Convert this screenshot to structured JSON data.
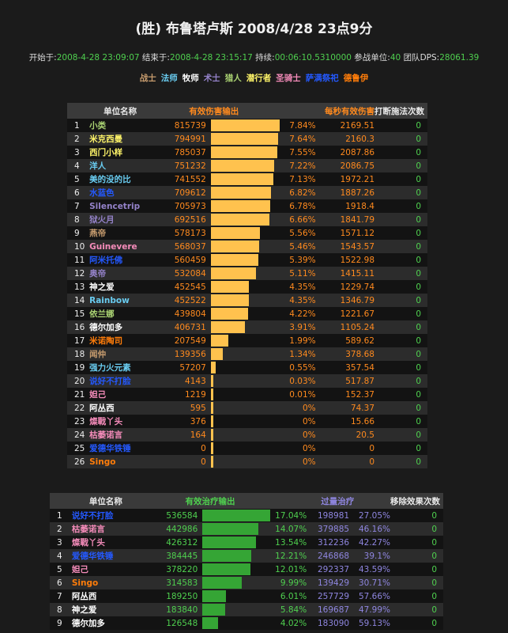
{
  "title": "(胜) 布鲁塔卢斯 2008/4/28 23点9分",
  "meta": {
    "start_label": "开始于:",
    "start": "2008-4-28 23:09:07",
    "end_label": " 结束于:",
    "end": "2008-4-28 23:15:17",
    "dur_label": " 持续:",
    "dur": "00:06:10.5310000",
    "units_label": " 参战单位:",
    "units": "40",
    "dps_label": " 团队DPS:",
    "dps": "28061.39"
  },
  "colors": {
    "warrior": "#c79c6e",
    "mage": "#69ccf0",
    "priest": "#ffffff",
    "warlock": "#9482c9",
    "hunter": "#abd473",
    "rogue": "#fff569",
    "paladin": "#f58cba",
    "shaman": "#2459ff",
    "druid": "#ff7d0a"
  },
  "legend": [
    {
      "label": "战士",
      "cls": "warrior"
    },
    {
      "label": "法师",
      "cls": "mage"
    },
    {
      "label": "牧师",
      "cls": "priest"
    },
    {
      "label": "术士",
      "cls": "warlock"
    },
    {
      "label": "猎人",
      "cls": "hunter"
    },
    {
      "label": "潜行者",
      "cls": "rogue"
    },
    {
      "label": "圣骑士",
      "cls": "paladin"
    },
    {
      "label": "萨满祭祀",
      "cls": "shaman"
    },
    {
      "label": "德鲁伊",
      "cls": "druid"
    }
  ],
  "damage": {
    "headers": {
      "name": "单位名称",
      "dmg": "有效伤害输出",
      "dps": "每秒有效伤害",
      "interrupts": "打断施法次数"
    },
    "rows": [
      {
        "n": "1",
        "name": "小类",
        "cls": "hunter",
        "val": "815739",
        "pct": "7.84%",
        "dps": "2169.51",
        "int": "0"
      },
      {
        "n": "2",
        "name": "米克西曼",
        "cls": "rogue",
        "val": "794991",
        "pct": "7.64%",
        "dps": "2160.3",
        "int": "0"
      },
      {
        "n": "3",
        "name": "西门小样",
        "cls": "rogue",
        "val": "785037",
        "pct": "7.55%",
        "dps": "2087.86",
        "int": "0"
      },
      {
        "n": "4",
        "name": "洋人",
        "cls": "mage",
        "val": "751232",
        "pct": "7.22%",
        "dps": "2086.75",
        "int": "0"
      },
      {
        "n": "5",
        "name": "美的没的比",
        "cls": "mage",
        "val": "741552",
        "pct": "7.13%",
        "dps": "1972.21",
        "int": "0"
      },
      {
        "n": "6",
        "name": "水蓝色",
        "cls": "shaman",
        "val": "709612",
        "pct": "6.82%",
        "dps": "1887.26",
        "int": "0"
      },
      {
        "n": "7",
        "name": "Silencetrip",
        "cls": "warlock",
        "val": "705973",
        "pct": "6.78%",
        "dps": "1918.4",
        "int": "0"
      },
      {
        "n": "8",
        "name": "狱火月",
        "cls": "warlock",
        "val": "692516",
        "pct": "6.66%",
        "dps": "1841.79",
        "int": "0"
      },
      {
        "n": "9",
        "name": "燕帝",
        "cls": "warrior",
        "val": "578173",
        "pct": "5.56%",
        "dps": "1571.12",
        "int": "0"
      },
      {
        "n": "10",
        "name": "Guinevere",
        "cls": "paladin",
        "val": "568037",
        "pct": "5.46%",
        "dps": "1543.57",
        "int": "0"
      },
      {
        "n": "11",
        "name": "阿米托佛",
        "cls": "shaman",
        "val": "560459",
        "pct": "5.39%",
        "dps": "1522.98",
        "int": "0"
      },
      {
        "n": "12",
        "name": "奥帝",
        "cls": "warlock",
        "val": "532084",
        "pct": "5.11%",
        "dps": "1415.11",
        "int": "0"
      },
      {
        "n": "13",
        "name": "神之爱",
        "cls": "priest",
        "val": "452545",
        "pct": "4.35%",
        "dps": "1229.74",
        "int": "0"
      },
      {
        "n": "14",
        "name": "Rainbow",
        "cls": "mage",
        "val": "452522",
        "pct": "4.35%",
        "dps": "1346.79",
        "int": "0"
      },
      {
        "n": "15",
        "name": "依兰娜",
        "cls": "hunter",
        "val": "439804",
        "pct": "4.22%",
        "dps": "1221.67",
        "int": "0"
      },
      {
        "n": "16",
        "name": "德尔加多",
        "cls": "priest",
        "val": "406731",
        "pct": "3.91%",
        "dps": "1105.24",
        "int": "0"
      },
      {
        "n": "17",
        "name": "米诺陶司",
        "cls": "druid",
        "val": "207549",
        "pct": "1.99%",
        "dps": "589.62",
        "int": "0"
      },
      {
        "n": "18",
        "name": "闻仲",
        "cls": "warrior",
        "val": "139356",
        "pct": "1.34%",
        "dps": "378.68",
        "int": "0"
      },
      {
        "n": "19",
        "name": "强力火元素",
        "cls": "mage",
        "val": "57207",
        "pct": "0.55%",
        "dps": "357.54",
        "int": "0"
      },
      {
        "n": "20",
        "name": "说好不打脸",
        "cls": "shaman",
        "val": "4143",
        "pct": "0.03%",
        "dps": "517.87",
        "int": "0"
      },
      {
        "n": "21",
        "name": "妲己",
        "cls": "paladin",
        "val": "1219",
        "pct": "0.01%",
        "dps": "152.37",
        "int": "0"
      },
      {
        "n": "22",
        "name": "阿丛西",
        "cls": "priest",
        "val": "595",
        "pct": "0%",
        "dps": "74.37",
        "int": "0"
      },
      {
        "n": "23",
        "name": "燦戰丫头",
        "cls": "paladin",
        "val": "376",
        "pct": "0%",
        "dps": "15.66",
        "int": "0"
      },
      {
        "n": "24",
        "name": "枯萎诺言",
        "cls": "paladin",
        "val": "164",
        "pct": "0%",
        "dps": "20.5",
        "int": "0"
      },
      {
        "n": "25",
        "name": "爱德华铁锤",
        "cls": "shaman",
        "val": "0",
        "pct": "0%",
        "dps": "0",
        "int": "0"
      },
      {
        "n": "26",
        "name": "Singo",
        "cls": "druid",
        "val": "0",
        "pct": "0%",
        "dps": "0",
        "int": "0"
      }
    ]
  },
  "healing": {
    "headers": {
      "name": "单位名称",
      "heal": "有效治疗输出",
      "overheal": "过量治疗",
      "dispels": "移除效果次数"
    },
    "rows": [
      {
        "n": "1",
        "name": "说好不打脸",
        "cls": "shaman",
        "val": "536584",
        "pct": "17.04%",
        "ov": "198981",
        "ovpct": "27.05%",
        "disp": "0"
      },
      {
        "n": "2",
        "name": "枯萎诺言",
        "cls": "paladin",
        "val": "442986",
        "pct": "14.07%",
        "ov": "379885",
        "ovpct": "46.16%",
        "disp": "0"
      },
      {
        "n": "3",
        "name": "燦戰丫头",
        "cls": "paladin",
        "val": "426312",
        "pct": "13.54%",
        "ov": "312236",
        "ovpct": "42.27%",
        "disp": "0"
      },
      {
        "n": "4",
        "name": "爱德华铁锤",
        "cls": "shaman",
        "val": "384445",
        "pct": "12.21%",
        "ov": "246868",
        "ovpct": "39.1%",
        "disp": "0"
      },
      {
        "n": "5",
        "name": "妲己",
        "cls": "paladin",
        "val": "378220",
        "pct": "12.01%",
        "ov": "292337",
        "ovpct": "43.59%",
        "disp": "0"
      },
      {
        "n": "6",
        "name": "Singo",
        "cls": "druid",
        "val": "314583",
        "pct": "9.99%",
        "ov": "139429",
        "ovpct": "30.71%",
        "disp": "0"
      },
      {
        "n": "7",
        "name": "阿丛西",
        "cls": "priest",
        "val": "189250",
        "pct": "6.01%",
        "ov": "257729",
        "ovpct": "57.66%",
        "disp": "0"
      },
      {
        "n": "8",
        "name": "神之爱",
        "cls": "priest",
        "val": "183840",
        "pct": "5.84%",
        "ov": "169687",
        "ovpct": "47.99%",
        "disp": "0"
      },
      {
        "n": "9",
        "name": "德尔加多",
        "cls": "priest",
        "val": "126548",
        "pct": "4.02%",
        "ov": "183090",
        "ovpct": "59.13%",
        "disp": "0"
      }
    ]
  }
}
